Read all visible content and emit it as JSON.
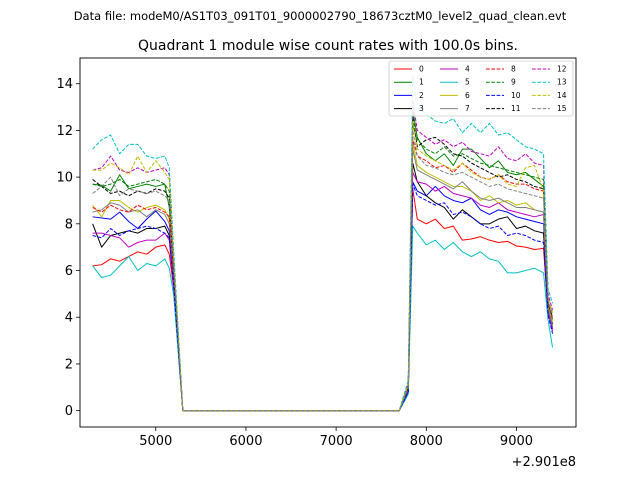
{
  "header": {
    "data_file": "Data file: modeM0/AS1T03_091T01_9000002790_18673cztM0_level2_quad_clean.evt"
  },
  "chart_data": {
    "type": "line",
    "title": "Quadrant 1 module wise count rates with 100.0s bins.",
    "xlabel": "",
    "ylabel": "",
    "x_offset_text": "+2.901e8",
    "xlim": [
      4160,
      9660
    ],
    "ylim": [
      -0.7,
      15.1
    ],
    "xticks": [
      5000,
      6000,
      7000,
      8000,
      9000
    ],
    "xtick_labels": [
      "5000",
      "6000",
      "7000",
      "8000",
      "9000"
    ],
    "yticks": [
      0,
      2,
      4,
      6,
      8,
      10,
      12,
      14
    ],
    "ytick_labels": [
      "0",
      "2",
      "4",
      "6",
      "8",
      "10",
      "12",
      "14"
    ],
    "legend": {
      "placement": "top-right",
      "columns": 4
    },
    "x": [
      4300,
      4400,
      4500,
      4600,
      4700,
      4800,
      4900,
      5000,
      5100,
      5150,
      5200,
      5300,
      5400,
      5500,
      5600,
      5700,
      5800,
      5900,
      6000,
      6100,
      6200,
      6300,
      6400,
      6500,
      6600,
      6700,
      6800,
      6900,
      7000,
      7100,
      7200,
      7300,
      7400,
      7500,
      7600,
      7700,
      7800,
      7850,
      7900,
      8000,
      8100,
      8200,
      8300,
      8400,
      8500,
      8600,
      8700,
      8800,
      8900,
      9000,
      9100,
      9200,
      9300,
      9350,
      9400
    ],
    "series": [
      {
        "name": "0",
        "color": "#ff0000",
        "dash": "solid",
        "pre": [
          6.2,
          6.25,
          6.5,
          6.4,
          6.6,
          6.8,
          6.7,
          7.0,
          7.1,
          6.7,
          5.2
        ],
        "post": [
          1.0,
          9.5,
          8.2,
          8.0,
          8.2,
          7.8,
          7.9,
          7.3,
          7.35,
          7.45,
          7.3,
          7.2,
          7.25,
          7.05,
          7.0,
          6.9,
          6.95,
          4.2,
          3.6
        ]
      },
      {
        "name": "1",
        "color": "#008000",
        "dash": "solid",
        "pre": [
          9.7,
          9.65,
          9.4,
          10.1,
          9.5,
          9.6,
          9.7,
          9.6,
          9.7,
          8.7,
          5.8
        ],
        "post": [
          1.0,
          12.9,
          11.7,
          11.0,
          10.7,
          11.0,
          10.5,
          11.2,
          11.2,
          10.8,
          10.4,
          10.7,
          10.2,
          10.1,
          10.2,
          9.9,
          9.6,
          4.5,
          3.9
        ]
      },
      {
        "name": "2",
        "color": "#0000ff",
        "dash": "solid",
        "pre": [
          8.3,
          8.25,
          8.2,
          8.5,
          8.1,
          7.8,
          8.2,
          8.55,
          8.1,
          7.7,
          5.5
        ],
        "post": [
          0.8,
          9.8,
          9.4,
          9.2,
          9.6,
          9.2,
          9.0,
          8.9,
          9.1,
          8.6,
          8.4,
          8.6,
          8.5,
          8.3,
          8.2,
          8.1,
          8.0,
          4.3,
          3.5
        ]
      },
      {
        "name": "3",
        "color": "#000000",
        "dash": "solid",
        "pre": [
          8.0,
          7.0,
          7.5,
          7.6,
          7.7,
          7.6,
          7.8,
          7.8,
          7.9,
          7.5,
          5.4
        ],
        "post": [
          0.8,
          10.6,
          9.8,
          9.2,
          8.9,
          8.7,
          8.2,
          8.6,
          8.3,
          8.0,
          8.0,
          8.2,
          8.3,
          7.8,
          7.9,
          7.7,
          7.6,
          4.4,
          3.7
        ]
      },
      {
        "name": "4",
        "color": "#bf00bf",
        "dash": "solid",
        "pre": [
          7.6,
          7.6,
          7.5,
          7.4,
          7.0,
          7.2,
          7.3,
          7.3,
          7.6,
          7.3,
          5.2
        ],
        "post": [
          0.9,
          10.2,
          9.8,
          9.7,
          9.4,
          9.6,
          9.3,
          9.2,
          9.1,
          8.8,
          8.7,
          8.9,
          8.6,
          8.5,
          8.4,
          8.3,
          8.4,
          4.2,
          3.4
        ]
      },
      {
        "name": "5",
        "color": "#00bfbf",
        "dash": "solid",
        "pre": [
          6.2,
          5.7,
          5.8,
          6.2,
          6.6,
          6.0,
          6.3,
          6.2,
          6.5,
          6.1,
          4.9
        ],
        "post": [
          0.7,
          7.9,
          7.6,
          7.1,
          7.3,
          6.9,
          7.2,
          6.8,
          6.6,
          6.8,
          6.5,
          6.4,
          5.9,
          5.9,
          6.0,
          6.1,
          5.9,
          3.9,
          2.7
        ]
      },
      {
        "name": "6",
        "color": "#bfbf00",
        "dash": "solid",
        "pre": [
          8.8,
          8.3,
          9.0,
          9.0,
          8.7,
          8.5,
          8.7,
          8.8,
          8.6,
          8.2,
          5.8
        ],
        "post": [
          1.0,
          11.5,
          10.5,
          10.2,
          10.0,
          9.8,
          9.6,
          9.6,
          9.4,
          9.0,
          9.2,
          8.9,
          9.0,
          8.8,
          8.9,
          8.6,
          8.5,
          4.5,
          3.8
        ]
      },
      {
        "name": "7",
        "color": "#808080",
        "dash": "solid",
        "pre": [
          8.5,
          8.6,
          8.9,
          8.8,
          8.5,
          8.6,
          8.3,
          8.6,
          8.4,
          8.0,
          5.7
        ],
        "post": [
          1.0,
          11.2,
          10.3,
          10.1,
          9.9,
          9.7,
          9.5,
          9.8,
          9.4,
          9.1,
          9.0,
          9.1,
          8.9,
          8.7,
          8.7,
          8.6,
          8.5,
          4.4,
          3.6
        ]
      },
      {
        "name": "8",
        "color": "#ff0000",
        "dash": "dashed",
        "pre": [
          8.7,
          8.5,
          8.8,
          8.6,
          8.5,
          8.8,
          8.6,
          8.7,
          8.5,
          8.3,
          5.9
        ],
        "post": [
          1.0,
          11.6,
          10.9,
          10.7,
          10.4,
          10.5,
          10.2,
          10.6,
          10.3,
          10.0,
          9.9,
          10.1,
          9.8,
          9.7,
          9.7,
          9.5,
          9.4,
          4.6,
          3.9
        ]
      },
      {
        "name": "9",
        "color": "#008000",
        "dash": "dashed",
        "pre": [
          9.7,
          9.6,
          9.7,
          9.9,
          9.6,
          9.7,
          9.8,
          9.9,
          9.7,
          9.4,
          6.2
        ],
        "post": [
          1.1,
          12.2,
          11.6,
          11.2,
          11.0,
          11.3,
          10.9,
          11.0,
          10.8,
          10.6,
          10.5,
          10.4,
          10.3,
          10.2,
          10.1,
          10.0,
          9.9,
          4.8,
          4.1
        ]
      },
      {
        "name": "10",
        "color": "#0000ff",
        "dash": "dashed",
        "pre": [
          7.5,
          7.4,
          7.8,
          7.5,
          7.7,
          7.8,
          7.9,
          7.8,
          7.6,
          7.4,
          5.3
        ],
        "post": [
          0.8,
          9.7,
          9.2,
          9.0,
          8.8,
          8.9,
          8.4,
          8.5,
          8.3,
          8.0,
          7.8,
          7.9,
          7.5,
          7.6,
          7.5,
          7.3,
          7.2,
          4.1,
          3.3
        ]
      },
      {
        "name": "11",
        "color": "#000000",
        "dash": "dashed",
        "pre": [
          9.9,
          9.6,
          9.3,
          9.4,
          9.2,
          9.4,
          9.3,
          9.5,
          9.4,
          9.1,
          6.0
        ],
        "post": [
          1.0,
          12.6,
          11.3,
          11.6,
          11.7,
          11.4,
          11.0,
          10.9,
          10.6,
          10.4,
          10.2,
          10.0,
          10.1,
          9.9,
          9.8,
          9.6,
          9.5,
          4.6,
          4.0
        ]
      },
      {
        "name": "12",
        "color": "#bf00bf",
        "dash": "dashed",
        "pre": [
          10.3,
          10.4,
          10.9,
          10.3,
          10.2,
          10.4,
          10.2,
          10.3,
          10.4,
          10.1,
          6.5
        ],
        "post": [
          1.2,
          13.3,
          12.0,
          11.7,
          11.4,
          11.6,
          11.3,
          11.5,
          11.1,
          11.0,
          10.9,
          11.3,
          10.8,
          10.7,
          11.0,
          10.6,
          10.5,
          5.0,
          4.3
        ]
      },
      {
        "name": "13",
        "color": "#00bfbf",
        "dash": "dashed",
        "pre": [
          11.2,
          11.6,
          11.8,
          11.0,
          11.4,
          11.4,
          10.9,
          10.8,
          10.9,
          10.4,
          6.8
        ],
        "post": [
          1.3,
          14.3,
          13.0,
          12.7,
          12.4,
          12.3,
          12.5,
          11.9,
          12.3,
          11.9,
          12.3,
          11.8,
          11.9,
          11.6,
          11.3,
          11.2,
          11.0,
          5.2,
          4.6
        ]
      },
      {
        "name": "14",
        "color": "#bfbf00",
        "dash": "dashed",
        "pre": [
          10.3,
          10.3,
          10.6,
          10.4,
          10.1,
          10.9,
          10.2,
          10.7,
          10.2,
          9.9,
          6.4
        ],
        "post": [
          1.1,
          12.4,
          11.2,
          10.9,
          10.7,
          10.5,
          10.3,
          10.6,
          10.2,
          10.0,
          9.9,
          10.1,
          9.7,
          9.6,
          10.4,
          10.5,
          9.4,
          4.8,
          4.2
        ]
      },
      {
        "name": "15",
        "color": "#808080",
        "dash": "dashed",
        "pre": [
          9.3,
          9.6,
          10.0,
          9.2,
          9.5,
          9.4,
          9.3,
          9.4,
          9.2,
          9.0,
          6.1
        ],
        "post": [
          1.0,
          12.0,
          10.9,
          10.5,
          10.4,
          10.2,
          10.1,
          10.2,
          10.0,
          9.8,
          9.6,
          9.7,
          9.5,
          9.4,
          9.3,
          9.2,
          9.1,
          4.7,
          4.0
        ]
      }
    ]
  }
}
